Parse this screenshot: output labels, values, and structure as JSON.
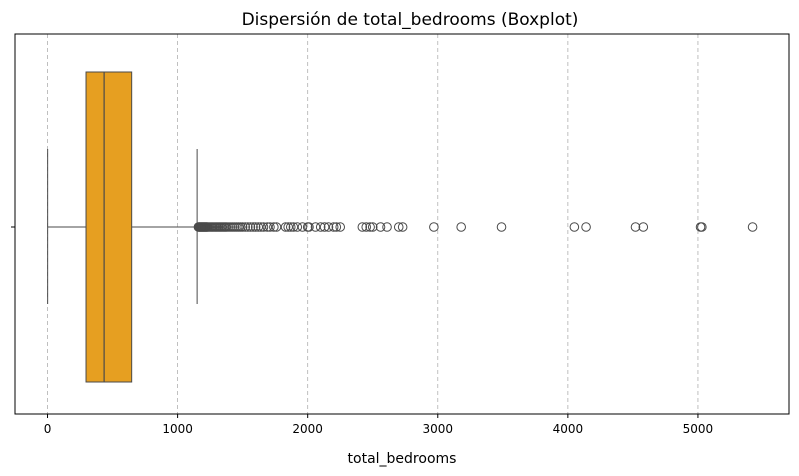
{
  "chart_data": {
    "type": "boxplot",
    "orientation": "horizontal",
    "title": "Dispersión de total_bedrooms (Boxplot)",
    "xlabel": "total_bedrooms",
    "ylabel": "",
    "xlim": [
      -250,
      5700
    ],
    "xticks": [
      0,
      1000,
      2000,
      3000,
      4000,
      5000
    ],
    "grid": "x-dashed",
    "colors": {
      "box": "#e69f21",
      "edge": "#4a4a4a",
      "grid": "#b0b0b0"
    },
    "box": {
      "whisker_low": 1,
      "q1": 296,
      "median": 435,
      "q3": 647,
      "whisker_high": 1150
    },
    "outliers": [
      1160,
      1165,
      1170,
      1175,
      1180,
      1185,
      1190,
      1195,
      1200,
      1205,
      1210,
      1215,
      1220,
      1225,
      1230,
      1240,
      1250,
      1260,
      1270,
      1280,
      1290,
      1300,
      1310,
      1320,
      1330,
      1340,
      1350,
      1360,
      1370,
      1380,
      1395,
      1410,
      1425,
      1440,
      1455,
      1470,
      1485,
      1500,
      1520,
      1540,
      1560,
      1580,
      1600,
      1620,
      1640,
      1660,
      1690,
      1710,
      1740,
      1760,
      1830,
      1850,
      1870,
      1890,
      1920,
      1960,
      2000,
      2010,
      2060,
      2100,
      2130,
      2160,
      2200,
      2220,
      2250,
      2420,
      2450,
      2480,
      2500,
      2560,
      2610,
      2700,
      2730,
      2970,
      3180,
      3490,
      4050,
      4140,
      4520,
      4580,
      5020,
      5030,
      5420
    ]
  }
}
